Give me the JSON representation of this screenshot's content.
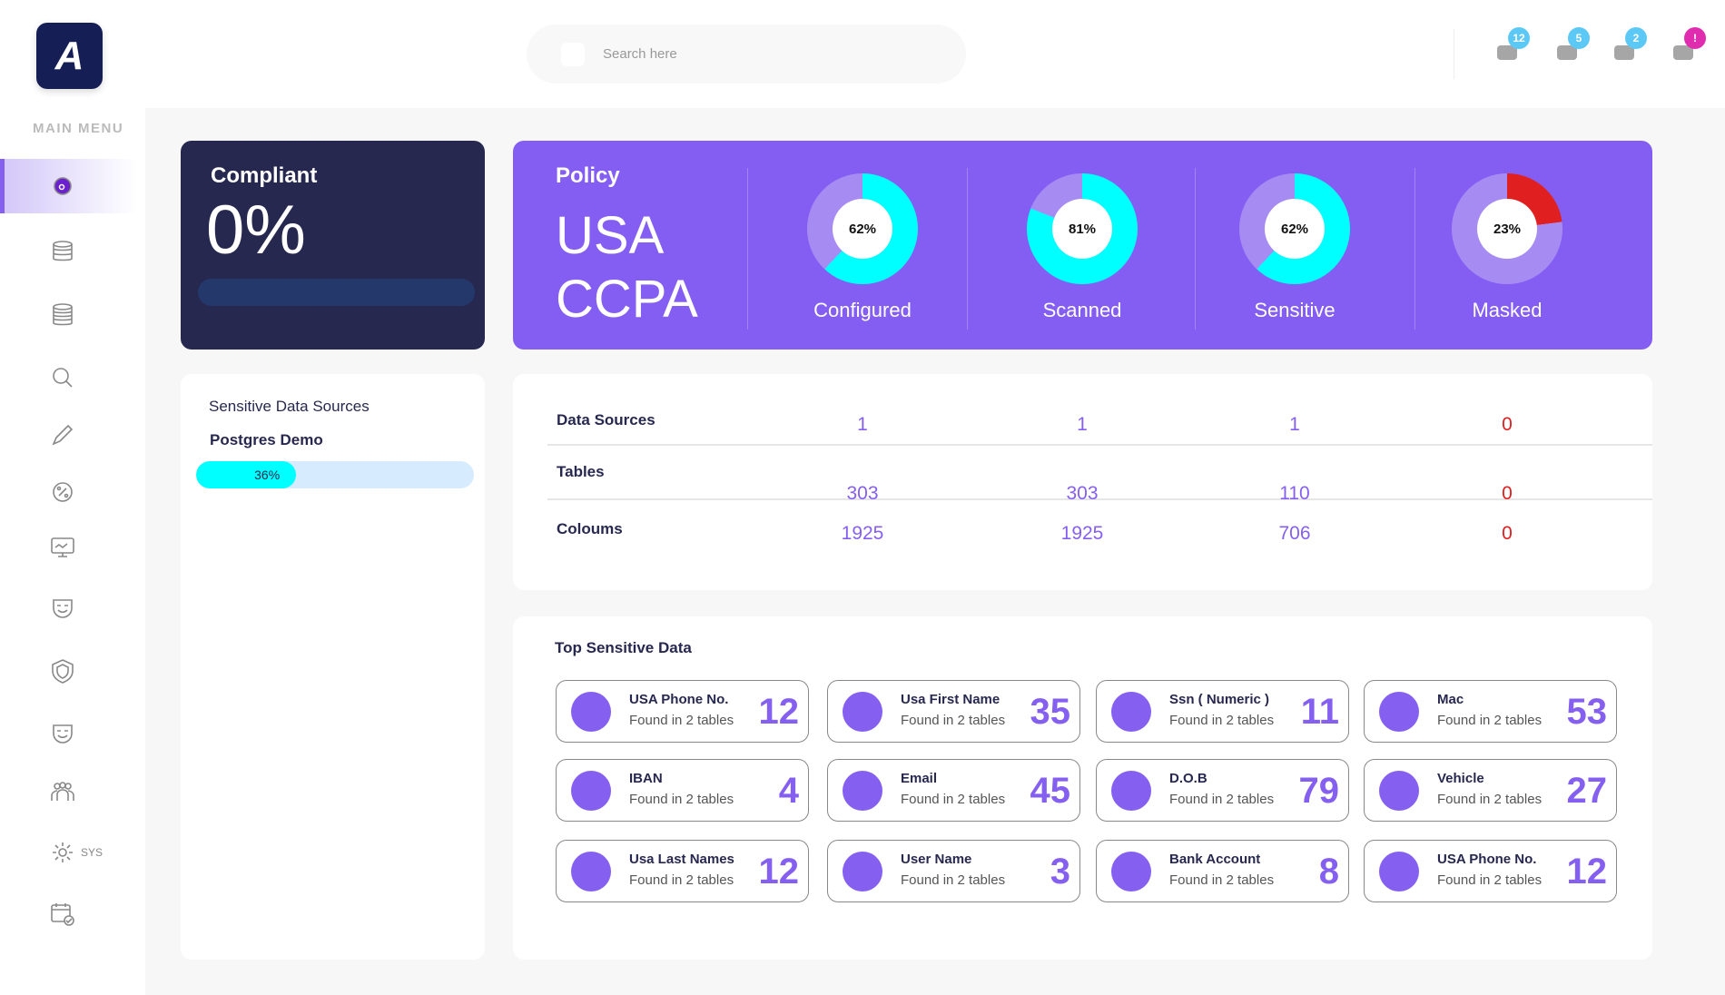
{
  "header": {
    "logo_text": "A",
    "search_placeholder": "Search here",
    "icons": [
      {
        "name": "bell-icon",
        "badge": "12",
        "color": "#5bc8f5"
      },
      {
        "name": "gift-icon",
        "badge": "5",
        "color": "#5bc8f5"
      },
      {
        "name": "chat-icon",
        "badge": "2",
        "color": "#5bc8f5"
      },
      {
        "name": "briefcase-icon",
        "badge": "!",
        "color": "#e02db0"
      }
    ]
  },
  "sidebar": {
    "title": "MAIN MENU",
    "items": [
      {
        "icon": "dashboard-icon",
        "label": "",
        "active": true
      },
      {
        "icon": "database-icon",
        "label": ""
      },
      {
        "icon": "database-stack-icon",
        "label": ""
      },
      {
        "icon": "search-icon",
        "label": ""
      },
      {
        "icon": "pencil-icon",
        "label": ""
      },
      {
        "icon": "percent-cycle-icon",
        "label": ""
      },
      {
        "icon": "monitor-chart-icon",
        "label": ""
      },
      {
        "icon": "mask-icon",
        "label": ""
      },
      {
        "icon": "shield-icon",
        "label": ""
      },
      {
        "icon": "mask-icon",
        "label": ""
      },
      {
        "icon": "users-icon",
        "label": ""
      },
      {
        "icon": "gear-icon",
        "label": "SYS"
      },
      {
        "icon": "calendar-check-icon",
        "label": ""
      }
    ]
  },
  "compliant": {
    "title": "Compliant",
    "value": "0%",
    "progress": 0
  },
  "policy": {
    "title": "Policy",
    "name": "USA CCPA",
    "metrics": [
      {
        "label": "Configured",
        "percent": 62,
        "text": "62%",
        "color": "#00ffff"
      },
      {
        "label": "Scanned",
        "percent": 81,
        "text": "81%",
        "color": "#00ffff"
      },
      {
        "label": "Sensitive",
        "percent": 62,
        "text": "62%",
        "color": "#00ffff"
      },
      {
        "label": "Masked",
        "percent": 23,
        "text": "23%",
        "color": "#e02020"
      }
    ]
  },
  "sensitive_sources": {
    "title": "Sensitive Data Sources",
    "source": "Postgres Demo",
    "percent": 36,
    "text": "36%"
  },
  "stats": {
    "rows": [
      {
        "label": "Data Sources",
        "values": [
          "1",
          "1",
          "1",
          "0"
        ]
      },
      {
        "label": "Tables",
        "values": [
          "303",
          "303",
          "110",
          "0"
        ]
      },
      {
        "label": "Coloums",
        "values": [
          "1925",
          "1925",
          "706",
          "0"
        ]
      }
    ],
    "colors": {
      "normal": "#8560f0",
      "zero": "#e02020"
    }
  },
  "top_sensitive": {
    "title": "Top Sensitive Data",
    "items": [
      {
        "name": "USA Phone No.",
        "sub": "Found in 2 tables",
        "count": "12"
      },
      {
        "name": "Usa First Name",
        "sub": "Found in 2 tables",
        "count": "35"
      },
      {
        "name": "Ssn ( Numeric )",
        "sub": "Found in 2 tables",
        "count": "11"
      },
      {
        "name": "Mac",
        "sub": "Found in 2 tables",
        "count": "53"
      },
      {
        "name": "IBAN",
        "sub": "Found in 2 tables",
        "count": "4"
      },
      {
        "name": "Email",
        "sub": "Found in 2 tables",
        "count": "45"
      },
      {
        "name": "D.O.B",
        "sub": "Found in 2 tables",
        "count": "79"
      },
      {
        "name": "Vehicle",
        "sub": "Found in 2 tables",
        "count": "27"
      },
      {
        "name": "Usa Last Names",
        "sub": "Found in 2 tables",
        "count": "12"
      },
      {
        "name": "User Name",
        "sub": "Found in 2 tables",
        "count": "3"
      },
      {
        "name": "Bank Account",
        "sub": "Found in 2 tables",
        "count": "8"
      },
      {
        "name": "USA Phone No.",
        "sub": "Found in 2 tables",
        "count": "12"
      }
    ]
  }
}
